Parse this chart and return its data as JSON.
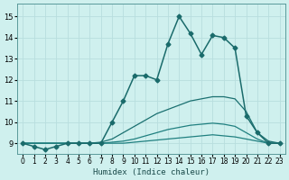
{
  "xlabel": "Humidex (Indice chaleur)",
  "bg_color": "#cff0ee",
  "grid_color": "#b8dede",
  "xlim": [
    -0.5,
    23.5
  ],
  "ylim": [
    8.5,
    15.6
  ],
  "yticks": [
    9,
    10,
    11,
    12,
    13,
    14,
    15
  ],
  "xticks": [
    0,
    1,
    2,
    3,
    4,
    5,
    6,
    7,
    8,
    9,
    10,
    11,
    12,
    13,
    14,
    15,
    16,
    17,
    18,
    19,
    20,
    21,
    22,
    23
  ],
  "series": [
    {
      "x": [
        0,
        1,
        2,
        3,
        4,
        5,
        6,
        7,
        8,
        9,
        10,
        11,
        12,
        13,
        14,
        15,
        16,
        17,
        18,
        19,
        20,
        21,
        22,
        23
      ],
      "y": [
        9.0,
        8.85,
        8.7,
        8.85,
        9.0,
        9.0,
        9.0,
        9.0,
        10.0,
        11.0,
        12.2,
        12.2,
        12.0,
        13.7,
        15.0,
        14.2,
        13.2,
        14.1,
        14.0,
        13.5,
        10.3,
        9.5,
        9.0,
        9.0
      ],
      "color": "#1a6b6b",
      "marker": "D",
      "markersize": 2.5,
      "linewidth": 1.1,
      "zorder": 5
    },
    {
      "x": [
        0,
        1,
        2,
        3,
        4,
        5,
        6,
        7,
        8,
        9,
        10,
        11,
        12,
        13,
        14,
        15,
        16,
        17,
        18,
        19,
        20,
        21,
        22,
        23
      ],
      "y": [
        9.0,
        9.0,
        9.0,
        9.0,
        9.0,
        9.0,
        9.0,
        9.05,
        9.2,
        9.5,
        9.8,
        10.1,
        10.4,
        10.6,
        10.8,
        11.0,
        11.1,
        11.2,
        11.2,
        11.1,
        10.5,
        9.5,
        9.1,
        9.0
      ],
      "color": "#1a7070",
      "marker": null,
      "markersize": 0,
      "linewidth": 0.9,
      "zorder": 3
    },
    {
      "x": [
        0,
        1,
        2,
        3,
        4,
        5,
        6,
        7,
        8,
        9,
        10,
        11,
        12,
        13,
        14,
        15,
        16,
        17,
        18,
        19,
        20,
        21,
        22,
        23
      ],
      "y": [
        9.0,
        9.0,
        9.0,
        9.0,
        9.0,
        9.0,
        9.0,
        9.0,
        9.05,
        9.1,
        9.2,
        9.35,
        9.5,
        9.65,
        9.75,
        9.85,
        9.9,
        9.95,
        9.9,
        9.8,
        9.5,
        9.2,
        9.0,
        9.0
      ],
      "color": "#208080",
      "marker": null,
      "markersize": 0,
      "linewidth": 0.9,
      "zorder": 3
    },
    {
      "x": [
        0,
        1,
        2,
        3,
        4,
        5,
        6,
        7,
        8,
        9,
        10,
        11,
        12,
        13,
        14,
        15,
        16,
        17,
        18,
        19,
        20,
        21,
        22,
        23
      ],
      "y": [
        9.0,
        9.0,
        9.0,
        9.0,
        9.0,
        9.0,
        9.0,
        9.0,
        9.0,
        9.0,
        9.05,
        9.1,
        9.15,
        9.2,
        9.25,
        9.3,
        9.35,
        9.4,
        9.35,
        9.3,
        9.2,
        9.1,
        9.0,
        9.0
      ],
      "color": "#208080",
      "marker": null,
      "markersize": 0,
      "linewidth": 0.9,
      "zorder": 3
    }
  ]
}
